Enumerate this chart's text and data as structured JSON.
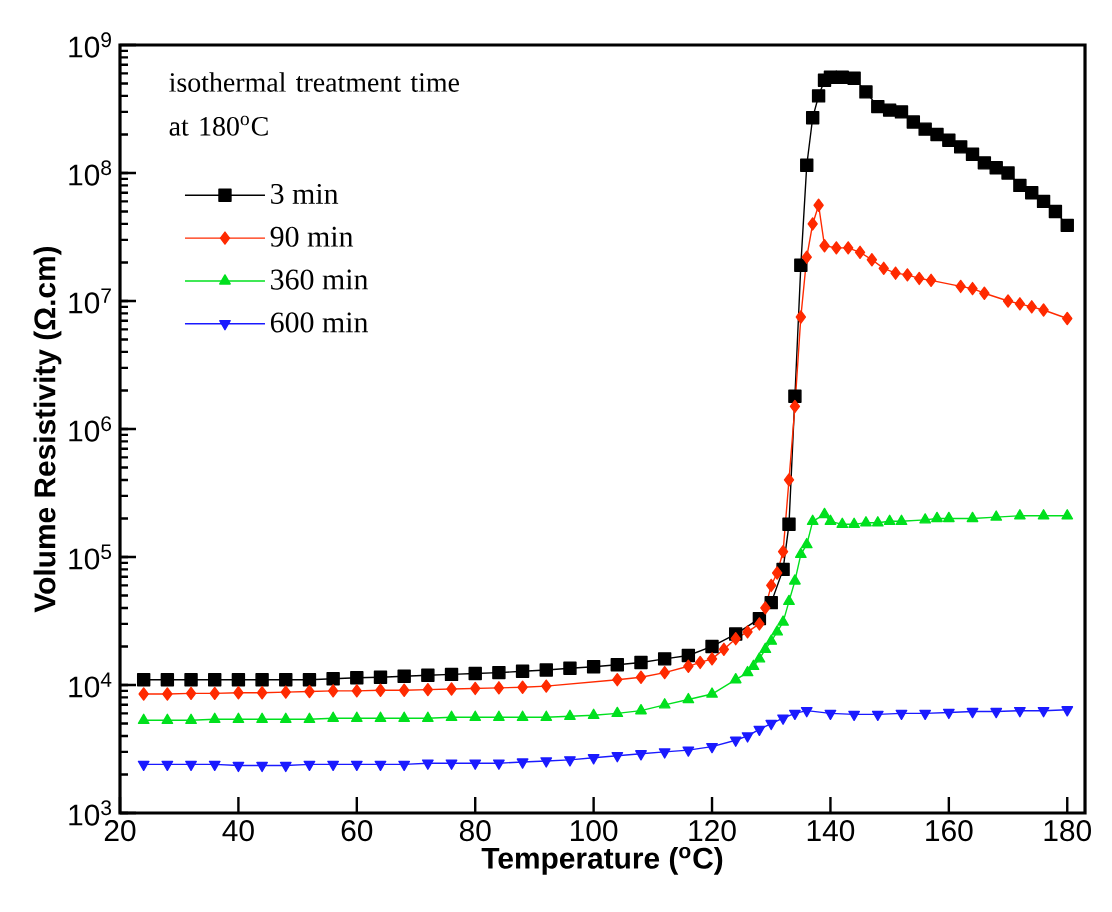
{
  "chart_data": {
    "type": "line",
    "xlabel": "Temperature ($^{o}$C)",
    "ylabel": "Volume Resistivity (Ω.cm)",
    "legend_title": "isothermal treatment time at 180$^{o}$C",
    "legend": "top left",
    "log": "y",
    "xlim": [
      20,
      183
    ],
    "ylim": [
      1000,
      1000000000
    ],
    "xticks": [
      20,
      40,
      60,
      80,
      100,
      120,
      140,
      160,
      180
    ],
    "yticks": [
      {
        "value": 1000,
        "label": "10$^{3}$"
      },
      {
        "value": 10000,
        "label": "10$^{4}$"
      },
      {
        "value": 100000,
        "label": "10$^{5}$"
      },
      {
        "value": 1000000,
        "label": "10$^{6}$"
      },
      {
        "value": 10000000,
        "label": "10$^{7}$"
      },
      {
        "value": 100000000,
        "label": "10$^{8}$"
      },
      {
        "value": 1000000000,
        "label": "10$^{9}$"
      }
    ],
    "series": [
      {
        "name": "3 min",
        "color": "#000000",
        "marker": "square",
        "x": [
          24,
          28,
          32,
          36,
          40,
          44,
          48,
          52,
          56,
          60,
          64,
          68,
          72,
          76,
          80,
          84,
          88,
          92,
          96,
          100,
          104,
          108,
          112,
          116,
          120,
          124,
          128,
          130,
          132,
          133,
          134,
          135,
          136,
          137,
          138,
          139,
          140,
          142,
          144,
          146,
          148,
          150,
          152,
          154,
          156,
          158,
          160,
          162,
          164,
          166,
          168,
          170,
          172,
          174,
          176,
          178,
          180
        ],
        "values": [
          11000,
          11000,
          11000,
          11000,
          11000,
          11000,
          11000,
          11000,
          11200,
          11400,
          11500,
          11700,
          11900,
          12100,
          12300,
          12500,
          12800,
          13100,
          13500,
          13900,
          14400,
          15000,
          16000,
          17000,
          20000,
          25000,
          33000,
          44000,
          80000,
          180000,
          1800000,
          19000000,
          115000000,
          270000000,
          400000000,
          530000000,
          560000000,
          560000000,
          550000000,
          430000000,
          330000000,
          310000000,
          300000000,
          250000000,
          220000000,
          200000000,
          180000000,
          160000000,
          140000000,
          120000000,
          110000000,
          100000000,
          80000000,
          70000000,
          60000000,
          50000000,
          39000000
        ]
      },
      {
        "name": "90 min",
        "color": "#ff2a00",
        "marker": "diamond",
        "x": [
          24,
          28,
          32,
          36,
          40,
          44,
          48,
          52,
          56,
          60,
          64,
          68,
          72,
          76,
          80,
          84,
          88,
          92,
          104,
          108,
          112,
          116,
          118,
          120,
          122,
          124,
          126,
          128,
          129,
          130,
          131,
          132,
          133,
          134,
          135,
          136,
          137,
          138,
          139,
          141,
          143,
          145,
          147,
          149,
          151,
          153,
          155,
          157,
          162,
          164,
          166,
          170,
          172,
          174,
          176,
          180
        ],
        "values": [
          8500,
          8500,
          8600,
          8600,
          8700,
          8700,
          8800,
          8900,
          9000,
          9000,
          9100,
          9100,
          9200,
          9300,
          9400,
          9500,
          9600,
          9800,
          11000,
          11500,
          12500,
          14000,
          15000,
          16000,
          19000,
          23000,
          26000,
          30000,
          40000,
          60000,
          75000,
          110000,
          400000,
          1500000,
          7500000,
          22000000,
          40000000,
          56000000,
          27000000,
          26000000,
          26000000,
          24000000,
          21000000,
          18000000,
          16500000,
          16000000,
          15000000,
          14500000,
          13000000,
          12500000,
          11500000,
          10000000,
          9500000,
          9000000,
          8500000,
          7300000
        ]
      },
      {
        "name": "360 min",
        "color": "#00e01e",
        "marker": "triangle",
        "x": [
          24,
          28,
          32,
          36,
          40,
          44,
          48,
          52,
          56,
          60,
          64,
          68,
          72,
          76,
          80,
          84,
          88,
          92,
          96,
          100,
          104,
          108,
          112,
          116,
          120,
          124,
          126,
          127,
          128,
          129,
          130,
          131,
          132,
          133,
          134,
          135,
          136,
          137,
          139,
          140,
          142,
          144,
          146,
          148,
          150,
          152,
          156,
          158,
          160,
          164,
          168,
          172,
          176,
          180
        ],
        "values": [
          5300,
          5300,
          5300,
          5400,
          5400,
          5400,
          5400,
          5400,
          5500,
          5500,
          5500,
          5500,
          5500,
          5600,
          5600,
          5600,
          5600,
          5600,
          5700,
          5800,
          6000,
          6300,
          7000,
          7700,
          8500,
          11000,
          12500,
          14000,
          16000,
          19000,
          22000,
          26000,
          31000,
          45000,
          65000,
          105000,
          125000,
          190000,
          215000,
          190000,
          180000,
          180000,
          185000,
          185000,
          190000,
          190000,
          195000,
          200000,
          200000,
          200000,
          205000,
          210000,
          210000,
          210000
        ]
      },
      {
        "name": "600 min",
        "color": "#1a1aff",
        "marker": "triangle down",
        "x": [
          24,
          28,
          32,
          36,
          40,
          44,
          48,
          52,
          56,
          60,
          64,
          68,
          72,
          76,
          80,
          84,
          88,
          92,
          96,
          100,
          104,
          108,
          112,
          116,
          120,
          124,
          126,
          128,
          130,
          132,
          134,
          136,
          140,
          144,
          148,
          152,
          156,
          160,
          164,
          168,
          172,
          176,
          180
        ],
        "values": [
          2400,
          2400,
          2400,
          2400,
          2350,
          2350,
          2350,
          2400,
          2400,
          2400,
          2400,
          2400,
          2450,
          2450,
          2450,
          2450,
          2500,
          2550,
          2600,
          2700,
          2800,
          2900,
          3000,
          3100,
          3300,
          3700,
          4000,
          4500,
          5000,
          5500,
          6000,
          6300,
          6000,
          5900,
          5900,
          6000,
          6000,
          6100,
          6200,
          6200,
          6300,
          6300,
          6400
        ]
      }
    ]
  }
}
